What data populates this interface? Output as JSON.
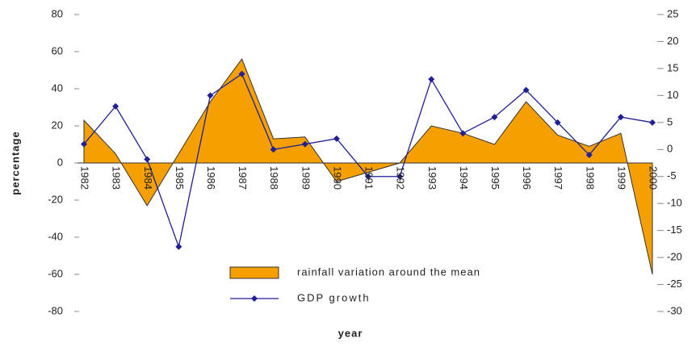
{
  "chart_data": {
    "type": "area-line",
    "x_label": "year",
    "y_label": "percentage",
    "categories": [
      "1982",
      "1983",
      "1984",
      "1985",
      "1986",
      "1987",
      "1988",
      "1989",
      "1990",
      "1991",
      "1992",
      "1993",
      "1994",
      "1995",
      "1996",
      "1997",
      "1998",
      "1999",
      "2000"
    ],
    "series": [
      {
        "name": "rainfall variation around the mean",
        "color": "#f5a000",
        "axis": "y",
        "values": [
          23,
          5,
          -23,
          5,
          33,
          56,
          13,
          14,
          -10,
          -5,
          0,
          20,
          16,
          10,
          33,
          15,
          9,
          16,
          -60
        ]
      },
      {
        "name": "GDP growth",
        "color": "#1f1f99",
        "axis": "y2",
        "values": [
          1,
          8,
          -1.8,
          -18,
          10,
          14,
          0,
          1,
          2,
          -5,
          -5,
          13,
          3,
          6,
          11,
          5,
          -1,
          6,
          5
        ]
      }
    ],
    "ylim": [
      -80,
      80
    ],
    "yticks": [
      -80,
      -60,
      -40,
      -20,
      0,
      20,
      40,
      60,
      80
    ],
    "y2lim": [
      -30,
      25
    ],
    "y2ticks": [
      -30,
      -25,
      -20,
      -15,
      -10,
      -5,
      0,
      5,
      10,
      15,
      20,
      25
    ],
    "legend": "bottom-center"
  }
}
